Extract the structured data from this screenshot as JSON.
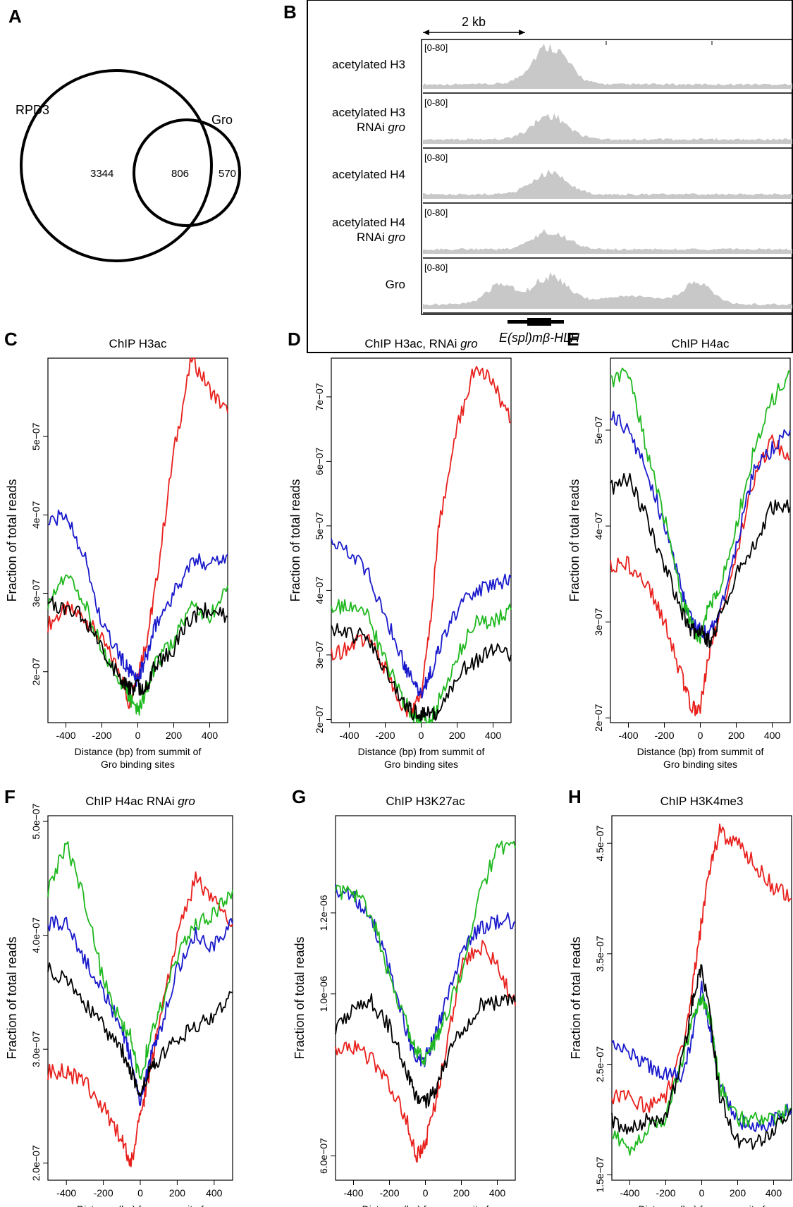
{
  "panel_letters": [
    "A",
    "B",
    "C",
    "D",
    "E",
    "F",
    "G",
    "H"
  ],
  "venn": {
    "left_label": "RPD3",
    "right_label": "Gro",
    "left_only": "3344",
    "overlap": "806",
    "right_only": "570"
  },
  "browser": {
    "scale_label": "2 kb",
    "range_label": "[0-80]",
    "tracks": [
      {
        "label_lines": [
          "acetylated H3"
        ],
        "peak": 78
      },
      {
        "label_lines": [
          "acetylated H3",
          "RNAi gro"
        ],
        "peak": 48
      },
      {
        "label_lines": [
          "acetylated H4"
        ],
        "peak": 44
      },
      {
        "label_lines": [
          "acetylated H4",
          "RNAi gro"
        ],
        "peak": 36
      },
      {
        "label_lines": [
          "Gro"
        ],
        "peak": 55
      }
    ],
    "gene_label": "E(spl)mβ-HLH",
    "colors": {
      "track_fill": "#c8c8c8",
      "frame": "#000000"
    }
  },
  "series_colors": {
    "red": "#e8201c",
    "blue": "#1a1acc",
    "green": "#1fb81f",
    "black": "#000000"
  },
  "chart_data": [
    {
      "panel": "C",
      "type": "line",
      "title": "ChIP H3ac",
      "xlabel": "Distance (bp) from summit of\nGro binding sites",
      "ylabel": "Fraction of total reads",
      "xlim": [
        -500,
        500
      ],
      "ylim": [
        1.35e-07,
        6e-07
      ],
      "xticks": [
        -400,
        -200,
        0,
        200,
        400
      ],
      "yticks": [
        2e-07,
        3e-07,
        4e-07,
        5e-07
      ],
      "ytick_labels": [
        "2e−07",
        "3e−07",
        "4e−07",
        "5e−07"
      ],
      "x": [
        -500,
        -400,
        -300,
        -200,
        -100,
        -50,
        0,
        50,
        100,
        200,
        300,
        400,
        500
      ],
      "series": [
        {
          "color": "red",
          "values": [
            2.6e-07,
            2.8e-07,
            2.7e-07,
            2.4e-07,
            2e-07,
            1.6e-07,
            2e-07,
            2.4e-07,
            3.1e-07,
            4.8e-07,
            6e-07,
            5.6e-07,
            5.3e-07
          ]
        },
        {
          "color": "blue",
          "values": [
            3.9e-07,
            4e-07,
            3.5e-07,
            2.6e-07,
            2.2e-07,
            2e-07,
            1.9e-07,
            2.2e-07,
            2.6e-07,
            3e-07,
            3.4e-07,
            3.4e-07,
            3.5e-07
          ]
        },
        {
          "color": "green",
          "values": [
            2.9e-07,
            3.2e-07,
            2.9e-07,
            2.3e-07,
            1.9e-07,
            1.7e-07,
            1.5e-07,
            1.8e-07,
            2.1e-07,
            2.4e-07,
            2.8e-07,
            2.7e-07,
            3.1e-07
          ]
        },
        {
          "color": "black",
          "values": [
            2.9e-07,
            2.8e-07,
            2.7e-07,
            2.3e-07,
            1.9e-07,
            1.8e-07,
            1.8e-07,
            1.8e-07,
            2.1e-07,
            2.3e-07,
            2.7e-07,
            2.8e-07,
            2.7e-07
          ]
        }
      ]
    },
    {
      "panel": "D",
      "type": "line",
      "title": "ChIP H3ac, RNAi gro",
      "title_italic": "gro",
      "xlabel": "Distance (bp) from summit of\nGro binding sites",
      "ylabel": "Fraction of total reads",
      "xlim": [
        -500,
        500
      ],
      "ylim": [
        1.95e-07,
        7.6e-07
      ],
      "xticks": [
        -400,
        -200,
        0,
        200,
        400
      ],
      "yticks": [
        2e-07,
        3e-07,
        4e-07,
        5e-07,
        6e-07,
        7e-07
      ],
      "ytick_labels": [
        "2e−07",
        "3e−07",
        "4e−07",
        "5e−07",
        "6e−07",
        "7e−07"
      ],
      "x": [
        -500,
        -400,
        -300,
        -200,
        -100,
        -50,
        0,
        50,
        100,
        200,
        300,
        400,
        500
      ],
      "series": [
        {
          "color": "red",
          "values": [
            3e-07,
            3.1e-07,
            3.3e-07,
            2.8e-07,
            2.2e-07,
            2.1e-07,
            2.4e-07,
            3.5e-07,
            5e-07,
            6.5e-07,
            7.5e-07,
            7.2e-07,
            6.6e-07
          ]
        },
        {
          "color": "blue",
          "values": [
            4.8e-07,
            4.6e-07,
            4.3e-07,
            3.6e-07,
            2.9e-07,
            2.6e-07,
            2.4e-07,
            2.7e-07,
            3.1e-07,
            3.7e-07,
            4e-07,
            4.1e-07,
            4.2e-07
          ]
        },
        {
          "color": "green",
          "values": [
            3.7e-07,
            3.8e-07,
            3.6e-07,
            2.9e-07,
            2.3e-07,
            2.1e-07,
            2e-07,
            2e-07,
            2.3e-07,
            3e-07,
            3.5e-07,
            3.5e-07,
            3.7e-07
          ]
        },
        {
          "color": "black",
          "values": [
            3.4e-07,
            3.3e-07,
            3.3e-07,
            2.8e-07,
            2.3e-07,
            2.1e-07,
            2.1e-07,
            2.1e-07,
            2.1e-07,
            2.7e-07,
            2.9e-07,
            3.1e-07,
            3e-07
          ]
        }
      ]
    },
    {
      "panel": "E",
      "type": "line",
      "title": "ChIP H4ac",
      "xlabel": "Distance (bp) from summit of\nGro binding sites",
      "ylabel": "Fraction of total reads",
      "xlim": [
        -500,
        500
      ],
      "ylim": [
        1.95e-07,
        5.75e-07
      ],
      "xticks": [
        -400,
        -200,
        0,
        200,
        400
      ],
      "yticks": [
        2e-07,
        3e-07,
        4e-07,
        5e-07
      ],
      "ytick_labels": [
        "2e−07",
        "3e−07",
        "4e−07",
        "5e−07"
      ],
      "x": [
        -500,
        -400,
        -300,
        -200,
        -100,
        -50,
        0,
        50,
        100,
        200,
        300,
        400,
        500
      ],
      "series": [
        {
          "color": "red",
          "values": [
            3.6e-07,
            3.6e-07,
            3.4e-07,
            3e-07,
            2.4e-07,
            2.1e-07,
            2.1e-07,
            2.7e-07,
            3e-07,
            3.7e-07,
            4.5e-07,
            4.9e-07,
            4.7e-07
          ]
        },
        {
          "color": "blue",
          "values": [
            5.2e-07,
            5e-07,
            4.6e-07,
            4e-07,
            3.3e-07,
            3e-07,
            2.9e-07,
            2.9e-07,
            3e-07,
            3.8e-07,
            4.6e-07,
            4.8e-07,
            5e-07
          ]
        },
        {
          "color": "green",
          "values": [
            5.5e-07,
            5.6e-07,
            4.8e-07,
            4.1e-07,
            3.2e-07,
            3e-07,
            2.8e-07,
            3.2e-07,
            3.3e-07,
            4e-07,
            4.8e-07,
            5.3e-07,
            5.6e-07
          ]
        },
        {
          "color": "black",
          "values": [
            4.4e-07,
            4.5e-07,
            4.1e-07,
            3.6e-07,
            3.1e-07,
            2.9e-07,
            2.9e-07,
            2.8e-07,
            3e-07,
            3.5e-07,
            3.8e-07,
            4.2e-07,
            4.2e-07
          ]
        }
      ]
    },
    {
      "panel": "F",
      "type": "line",
      "title": "ChIP H4ac RNAi gro",
      "title_italic": "gro",
      "xlabel": "Distance (bp) from summit of\nGro binding sites",
      "ylabel": "Fraction of total reads",
      "xlim": [
        -500,
        500
      ],
      "ylim": [
        1.85e-07,
        5.05e-07
      ],
      "xticks": [
        -400,
        -200,
        0,
        200,
        400
      ],
      "yticks": [
        2e-07,
        3e-07,
        4e-07,
        5e-07
      ],
      "ytick_labels": [
        "2.0e−07",
        "3.0e−07",
        "4.0e−07",
        "5.0e−07"
      ],
      "x": [
        -500,
        -400,
        -300,
        -200,
        -100,
        -50,
        0,
        50,
        100,
        200,
        300,
        400,
        500
      ],
      "series": [
        {
          "color": "red",
          "values": [
            2.8e-07,
            2.8e-07,
            2.7e-07,
            2.5e-07,
            2.2e-07,
            2e-07,
            2.4e-07,
            2.8e-07,
            3.2e-07,
            4e-07,
            4.5e-07,
            4.3e-07,
            4.1e-07
          ]
        },
        {
          "color": "blue",
          "values": [
            4.1e-07,
            4.1e-07,
            3.8e-07,
            3.5e-07,
            3.2e-07,
            2.9e-07,
            2.5e-07,
            2.9e-07,
            3.1e-07,
            3.7e-07,
            4e-07,
            3.9e-07,
            4.1e-07
          ]
        },
        {
          "color": "green",
          "values": [
            4.4e-07,
            4.8e-07,
            4.3e-07,
            3.6e-07,
            3.2e-07,
            3.1e-07,
            2.7e-07,
            3.1e-07,
            3.3e-07,
            3.8e-07,
            4.1e-07,
            4.2e-07,
            4.4e-07
          ]
        },
        {
          "color": "black",
          "values": [
            3.7e-07,
            3.6e-07,
            3.4e-07,
            3.2e-07,
            3e-07,
            2.8e-07,
            2.6e-07,
            2.8e-07,
            2.9e-07,
            3.1e-07,
            3.2e-07,
            3.3e-07,
            3.5e-07
          ]
        }
      ]
    },
    {
      "panel": "G",
      "type": "line",
      "title": "ChIP H3K27ac",
      "xlabel": "Distance (bp) from summit of\nGro binding sites",
      "ylabel": "Fraction of total reads",
      "xlim": [
        -500,
        500
      ],
      "ylim": [
        5.4e-07,
        1.44e-06
      ],
      "xticks": [
        -400,
        -200,
        0,
        200,
        400
      ],
      "yticks": [
        6e-07,
        1e-06,
        1.2e-06
      ],
      "ytick_labels": [
        "6.0e−07",
        "1.0e−06",
        "1.2e−06"
      ],
      "x": [
        -500,
        -400,
        -300,
        -200,
        -100,
        -50,
        0,
        50,
        100,
        200,
        300,
        400,
        500
      ],
      "series": [
        {
          "color": "red",
          "values": [
            8.5e-07,
            8.7e-07,
            8.4e-07,
            7.8e-07,
            6.8e-07,
            6e-07,
            6.3e-07,
            7.2e-07,
            8.3e-07,
            1.07e-06,
            1.12e-06,
            1.07e-06,
            9.7e-07
          ]
        },
        {
          "color": "blue",
          "values": [
            1.26e-06,
            1.24e-06,
            1.19e-06,
            1.06e-06,
            9e-07,
            8.3e-07,
            8.4e-07,
            8.9e-07,
            9.6e-07,
            1.1e-06,
            1.16e-06,
            1.18e-06,
            1.18e-06
          ]
        },
        {
          "color": "green",
          "values": [
            1.25e-06,
            1.25e-06,
            1.2e-06,
            1.04e-06,
            9.2e-07,
            8.6e-07,
            8.4e-07,
            8.8e-07,
            9.3e-07,
            1.05e-06,
            1.24e-06,
            1.36e-06,
            1.36e-06
          ]
        },
        {
          "color": "black",
          "values": [
            9.1e-07,
            9.7e-07,
            9.8e-07,
            9.2e-07,
            8e-07,
            7.5e-07,
            7.3e-07,
            7.6e-07,
            8.2e-07,
            9.1e-07,
            9.7e-07,
            9.8e-07,
            9.8e-07
          ]
        }
      ]
    },
    {
      "panel": "H",
      "type": "line",
      "title": "ChIP H3K4me3",
      "xlabel": "Distance (bp) from summit of\nGro binding sites",
      "ylabel": "Fraction of total reads",
      "xlim": [
        -500,
        500
      ],
      "ylim": [
        1.45e-07,
        4.75e-07
      ],
      "xticks": [
        -400,
        -200,
        0,
        200,
        400
      ],
      "yticks": [
        1.5e-07,
        2.5e-07,
        3.5e-07,
        4.5e-07
      ],
      "ytick_labels": [
        "1.5e−07",
        "2.5e−07",
        "3.5e−07",
        "4.5e−07"
      ],
      "x": [
        -500,
        -400,
        -300,
        -200,
        -100,
        -50,
        0,
        50,
        100,
        200,
        300,
        400,
        500
      ],
      "series": [
        {
          "color": "red",
          "values": [
            2.2e-07,
            2.2e-07,
            2.1e-07,
            2.2e-07,
            2.7e-07,
            3.2e-07,
            3.8e-07,
            4.3e-07,
            4.6e-07,
            4.5e-07,
            4.3e-07,
            4.1e-07,
            4e-07
          ]
        },
        {
          "color": "blue",
          "values": [
            2.7e-07,
            2.6e-07,
            2.5e-07,
            2.4e-07,
            2.4e-07,
            2.8e-07,
            3.2e-07,
            2.8e-07,
            2.3e-07,
            2e-07,
            1.9e-07,
            2e-07,
            2.1e-07
          ]
        },
        {
          "color": "green",
          "values": [
            1.9e-07,
            1.7e-07,
            1.9e-07,
            2e-07,
            2.6e-07,
            2.9e-07,
            3.1e-07,
            2.9e-07,
            2.3e-07,
            2e-07,
            2e-07,
            2e-07,
            2.1e-07
          ]
        },
        {
          "color": "black",
          "values": [
            2e-07,
            1.9e-07,
            2e-07,
            2e-07,
            2.6e-07,
            3.1e-07,
            3.4e-07,
            2.9e-07,
            2.2e-07,
            1.8e-07,
            1.8e-07,
            1.9e-07,
            2.1e-07
          ]
        }
      ]
    }
  ]
}
